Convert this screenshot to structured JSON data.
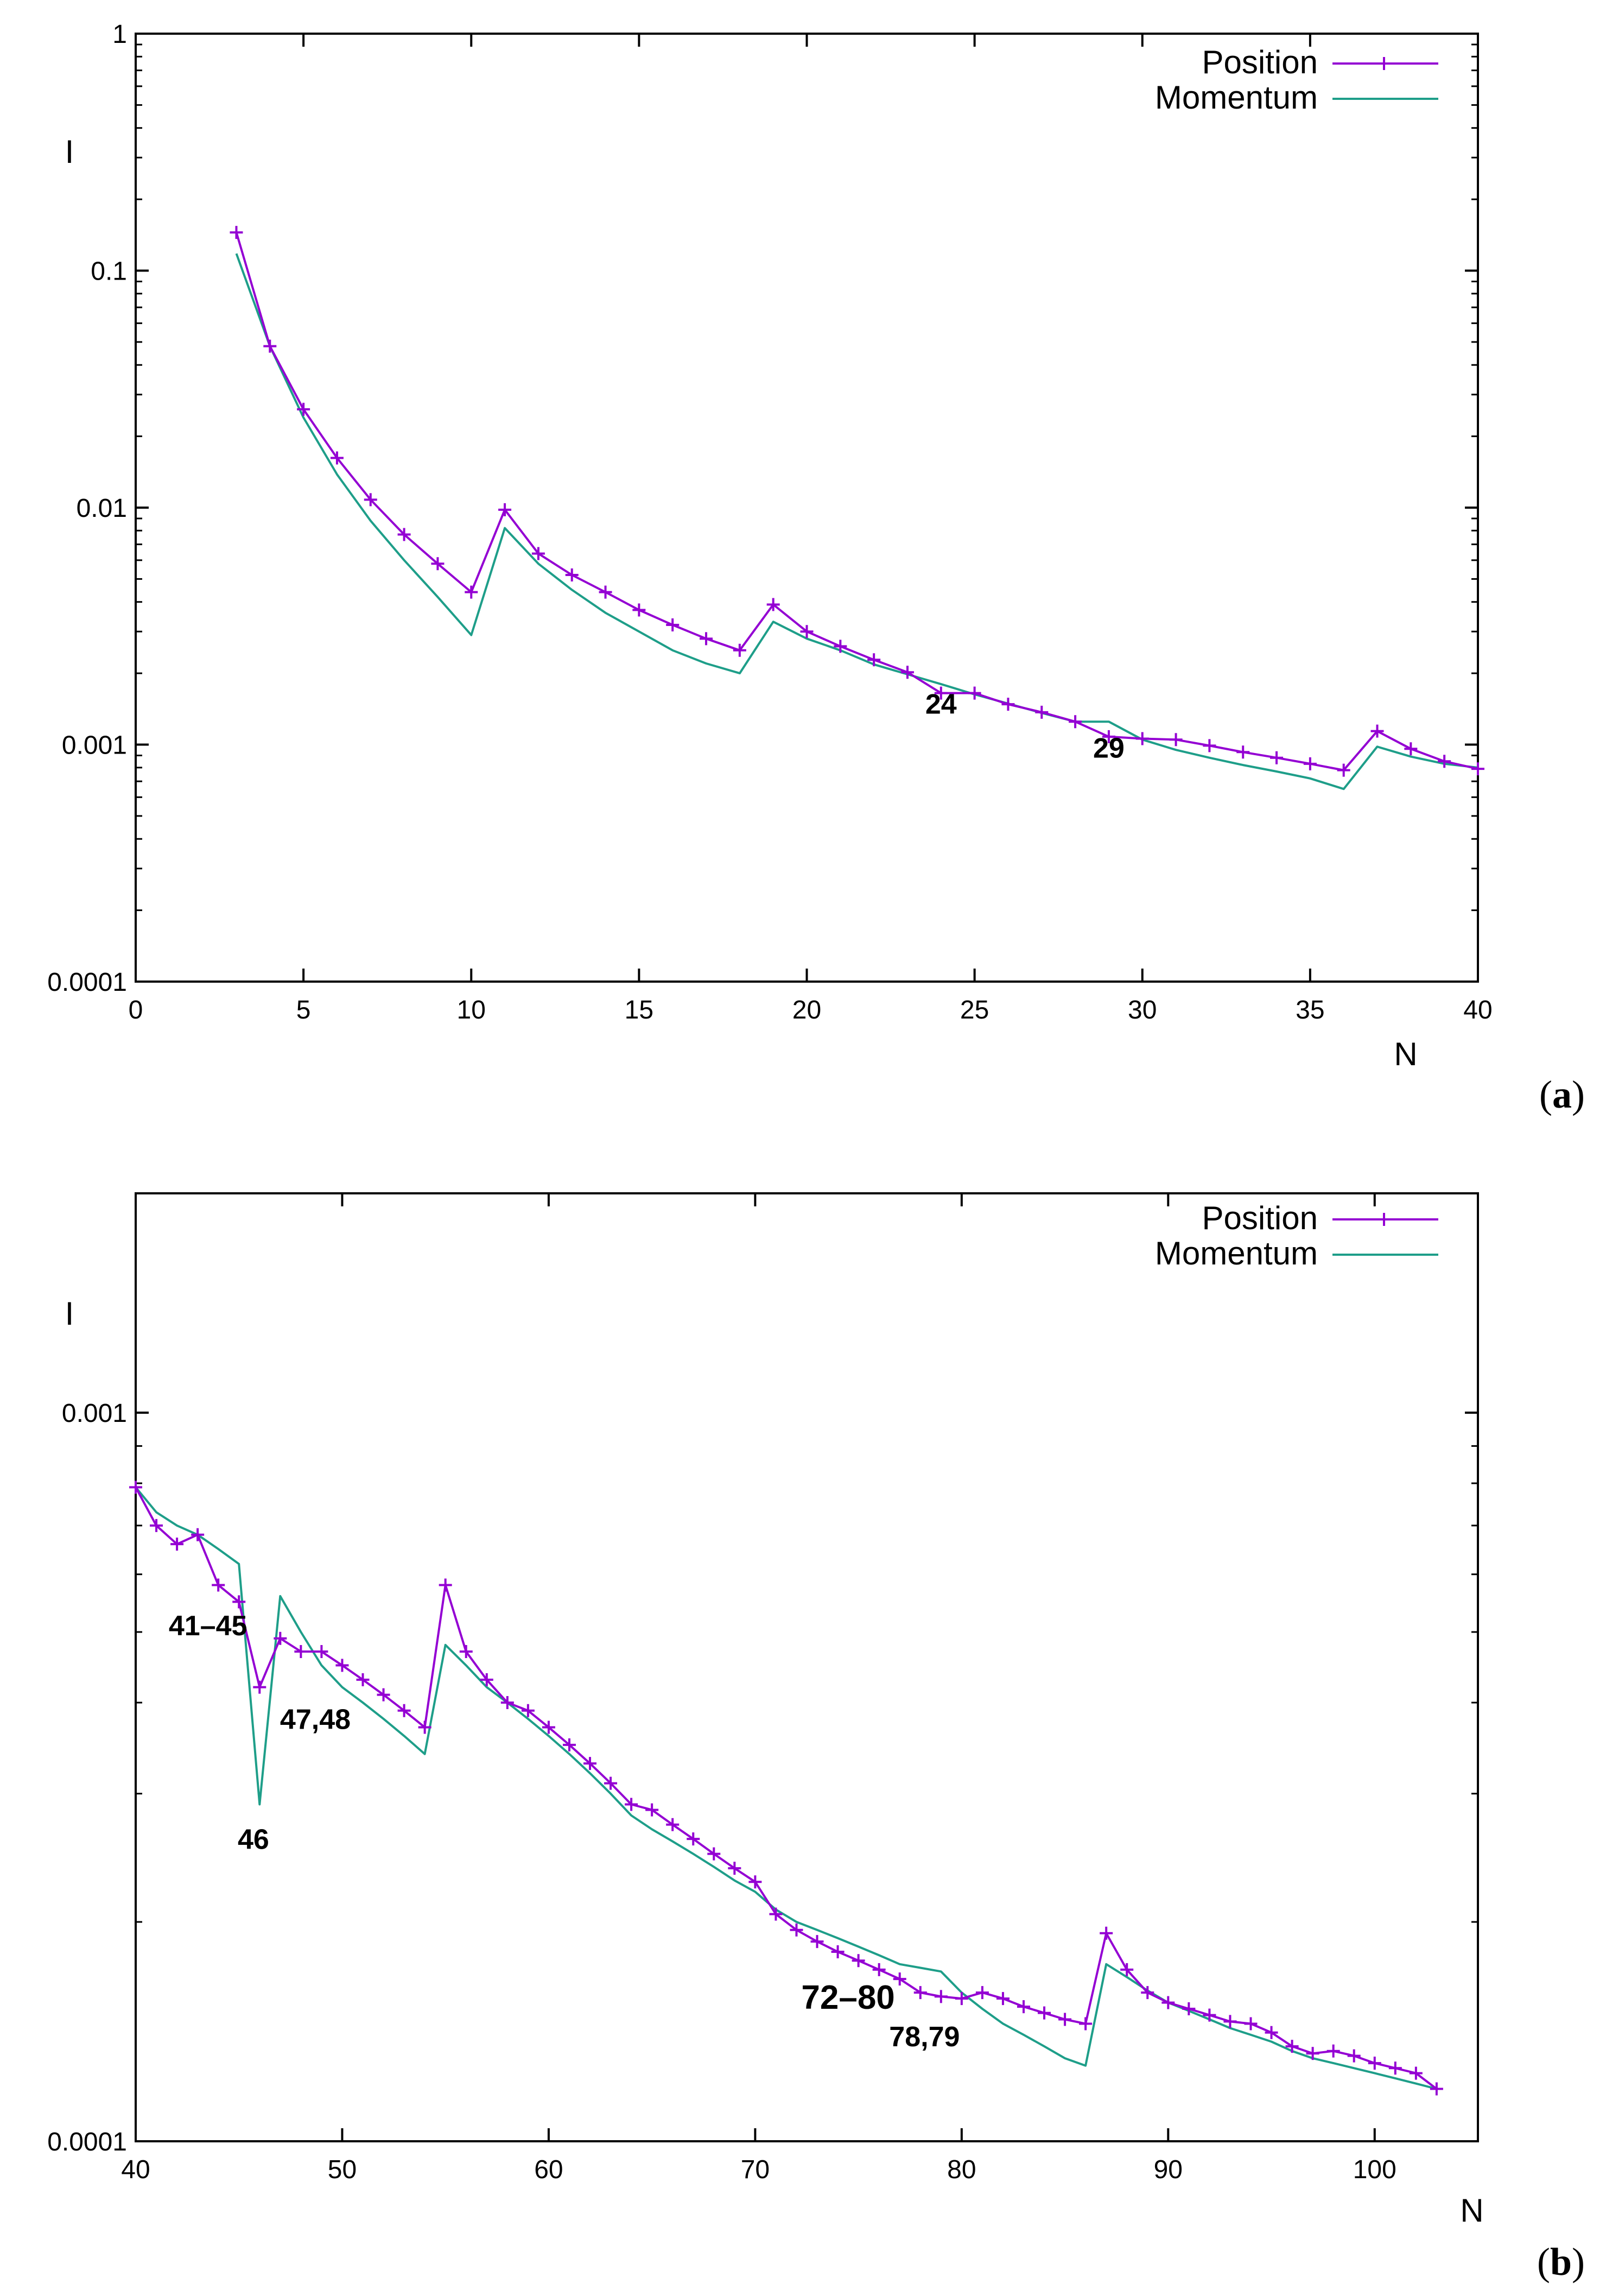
{
  "chart_data": [
    {
      "type": "line",
      "panel_label": "(a)",
      "panel_letter": "a",
      "xlabel": "N",
      "ylabel": "I",
      "xlim": [
        0,
        40
      ],
      "ylim": [
        0.0001,
        1
      ],
      "yscale": "log",
      "grid": false,
      "legend_position": "top-right",
      "xticks": [
        0,
        5,
        10,
        15,
        20,
        25,
        30,
        35,
        40
      ],
      "xtick_labels": [
        "0",
        "5",
        "10",
        "15",
        "20",
        "25",
        "30",
        "35",
        "40"
      ],
      "yticks": [
        0.0001,
        0.001,
        0.01,
        0.1,
        1
      ],
      "ytick_labels": [
        "0.0001",
        "0.001",
        "0.01",
        "0.1",
        "1"
      ],
      "series": [
        {
          "name": "Position",
          "color": "#9400D3",
          "marker": "plus",
          "x": [
            3,
            4,
            5,
            6,
            7,
            8,
            9,
            10,
            11,
            12,
            13,
            14,
            15,
            16,
            17,
            18,
            19,
            20,
            21,
            22,
            23,
            24,
            25,
            26,
            27,
            28,
            29,
            30,
            31,
            32,
            33,
            34,
            35,
            36,
            37,
            38,
            39,
            40
          ],
          "values": [
            0.145,
            0.048,
            0.026,
            0.0162,
            0.0108,
            0.0077,
            0.0058,
            0.0044,
            0.0098,
            0.0064,
            0.0052,
            0.0044,
            0.0037,
            0.0032,
            0.0028,
            0.0025,
            0.0039,
            0.003,
            0.0026,
            0.00228,
            0.00202,
            0.00165,
            0.00165,
            0.00148,
            0.00137,
            0.00125,
            0.00108,
            0.00106,
            0.00105,
            0.00099,
            0.00093,
            0.00088,
            0.00083,
            0.00078,
            0.00114,
            0.00096,
            0.00085,
            0.00079
          ]
        },
        {
          "name": "Momentum",
          "color": "#1E9E89",
          "marker": "none",
          "x": [
            3,
            4,
            5,
            6,
            7,
            8,
            9,
            10,
            11,
            12,
            13,
            14,
            15,
            16,
            17,
            18,
            19,
            20,
            21,
            22,
            23,
            24,
            25,
            26,
            27,
            28,
            29,
            30,
            31,
            32,
            33,
            34,
            35,
            36,
            37,
            38,
            39,
            40
          ],
          "values": [
            0.118,
            0.048,
            0.024,
            0.0138,
            0.0088,
            0.006,
            0.0042,
            0.0029,
            0.0082,
            0.0058,
            0.0045,
            0.0036,
            0.003,
            0.0025,
            0.0022,
            0.002,
            0.0033,
            0.0028,
            0.0025,
            0.00218,
            0.00198,
            0.0018,
            0.00163,
            0.00149,
            0.00136,
            0.00125,
            0.00125,
            0.00105,
            0.00095,
            0.00088,
            0.00082,
            0.00077,
            0.00072,
            0.00065,
            0.00098,
            0.00089,
            0.00083,
            0.0008
          ]
        }
      ],
      "annotations": [
        {
          "text": "24",
          "x": 24.0,
          "y": 0.00135,
          "color": "#000000",
          "size": "medium"
        },
        {
          "text": "29",
          "x": 29.0,
          "y": 0.00088,
          "color": "#000000",
          "size": "medium"
        }
      ]
    },
    {
      "type": "line",
      "panel_label": "(b)",
      "panel_letter": "b",
      "xlabel": "N",
      "ylabel": "I",
      "xlim": [
        40,
        105
      ],
      "ylim": [
        0.0001,
        0.002
      ],
      "yscale": "log",
      "grid": false,
      "legend_position": "top-right",
      "xticks": [
        40,
        50,
        60,
        70,
        80,
        90,
        100
      ],
      "xtick_labels": [
        "40",
        "50",
        "60",
        "70",
        "80",
        "90",
        "100"
      ],
      "yticks": [
        0.0001,
        0.001
      ],
      "ytick_labels": [
        "0.0001",
        "0.001"
      ],
      "series": [
        {
          "name": "Position",
          "color": "#9400D3",
          "marker": "plus",
          "x": [
            40,
            41,
            42,
            43,
            44,
            45,
            46,
            47,
            48,
            49,
            50,
            51,
            52,
            53,
            54,
            55,
            56,
            57,
            58,
            59,
            60,
            61,
            62,
            63,
            64,
            65,
            66,
            67,
            68,
            69,
            70,
            71,
            72,
            73,
            74,
            75,
            76,
            77,
            78,
            79,
            80,
            81,
            82,
            83,
            84,
            85,
            86,
            87,
            88,
            89,
            90,
            91,
            92,
            93,
            94,
            95,
            96,
            97,
            98,
            99,
            100,
            101,
            102,
            103
          ],
          "values": [
            0.00079,
            0.0007,
            0.00066,
            0.00068,
            0.00058,
            0.00055,
            0.00042,
            0.00049,
            0.00047,
            0.00047,
            0.00045,
            0.00043,
            0.00041,
            0.00039,
            0.00037,
            0.00058,
            0.00047,
            0.00043,
            0.0004,
            0.00039,
            0.00037,
            0.00035,
            0.00033,
            0.00031,
            0.00029,
            0.000285,
            0.000272,
            0.00026,
            0.000248,
            0.000237,
            0.000227,
            0.000205,
            0.000195,
            0.000188,
            0.000182,
            0.000177,
            0.000172,
            0.000167,
            0.00016,
            0.000158,
            0.000157,
            0.00016,
            0.000157,
            0.000153,
            0.00015,
            0.000147,
            0.000145,
            0.000193,
            0.000172,
            0.00016,
            0.000155,
            0.000152,
            0.000149,
            0.000146,
            0.000145,
            0.000141,
            0.000135,
            0.000132,
            0.000133,
            0.000131,
            0.000128,
            0.000126,
            0.000124,
            0.000118
          ]
        },
        {
          "name": "Momentum",
          "color": "#1E9E89",
          "marker": "none",
          "x": [
            40,
            41,
            42,
            43,
            44,
            45,
            46,
            47,
            48,
            49,
            50,
            51,
            52,
            53,
            54,
            55,
            56,
            57,
            58,
            59,
            60,
            61,
            62,
            63,
            64,
            65,
            66,
            67,
            68,
            69,
            70,
            71,
            72,
            73,
            74,
            75,
            76,
            77,
            78,
            79,
            80,
            81,
            82,
            83,
            84,
            85,
            86,
            87,
            88,
            89,
            90,
            91,
            92,
            93,
            94,
            95,
            96,
            97,
            98,
            99,
            100,
            101,
            102,
            103
          ],
          "values": [
            0.00079,
            0.00073,
            0.0007,
            0.00068,
            0.00065,
            0.00062,
            0.00029,
            0.00056,
            0.0005,
            0.00045,
            0.00042,
            0.0004,
            0.00038,
            0.00036,
            0.00034,
            0.00048,
            0.00045,
            0.00042,
            0.0004,
            0.00038,
            0.00036,
            0.00034,
            0.00032,
            0.0003,
            0.00028,
            0.000268,
            0.000258,
            0.000248,
            0.000238,
            0.000228,
            0.00022,
            0.000208,
            0.0002,
            0.000195,
            0.00019,
            0.000185,
            0.00018,
            0.000175,
            0.000173,
            0.000171,
            0.00016,
            0.000152,
            0.000145,
            0.00014,
            0.000135,
            0.00013,
            0.000127,
            0.000175,
            0.000168,
            0.000161,
            0.000155,
            0.000151,
            0.000147,
            0.000143,
            0.00014,
            0.000137,
            0.000133,
            0.00013,
            0.000128,
            0.000126,
            0.000124,
            0.000122,
            0.00012,
            0.000118
          ]
        }
      ],
      "annotations": [
        {
          "text": "41–45",
          "x": 43.5,
          "y": 0.000495,
          "color": "#000000",
          "size": "medium"
        },
        {
          "text": "47,48",
          "x": 48.7,
          "y": 0.000368,
          "color": "#000000",
          "size": "medium"
        },
        {
          "text": "46",
          "x": 45.7,
          "y": 0.000252,
          "color": "#33DD33",
          "size": "medium"
        },
        {
          "text": "72–80",
          "x": 74.5,
          "y": 0.000152,
          "color": "#000000",
          "size": "large"
        },
        {
          "text": "78,79",
          "x": 78.2,
          "y": 0.000135,
          "color": "#E8261E",
          "size": "medium"
        }
      ]
    }
  ]
}
